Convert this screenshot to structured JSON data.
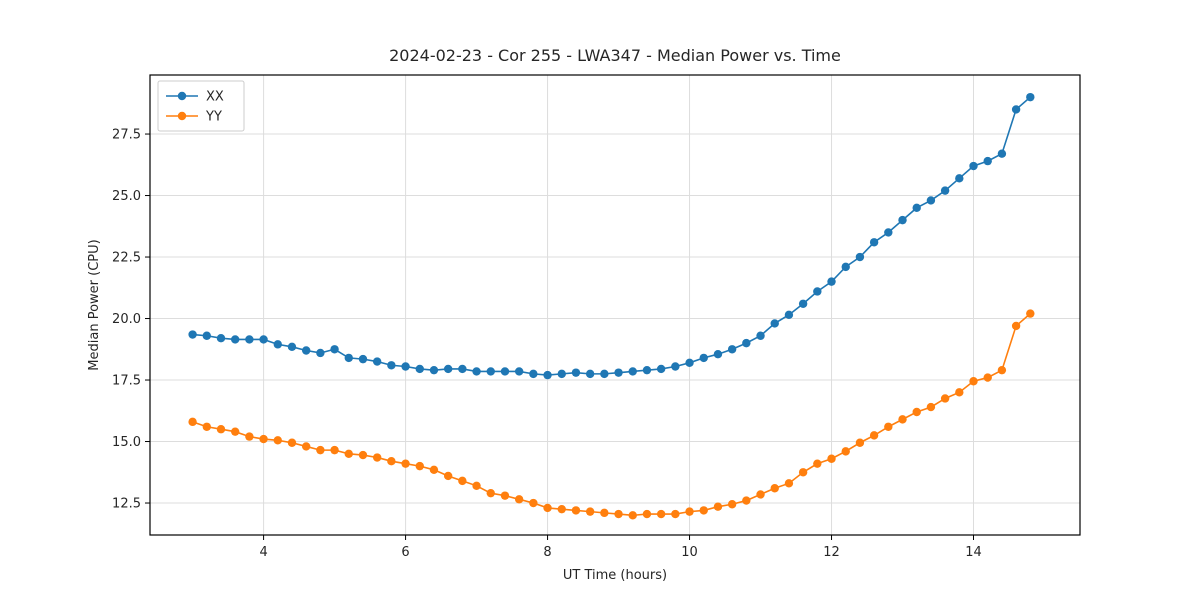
{
  "chart_data": {
    "type": "line",
    "title": "2024-02-23 - Cor 255 - LWA347 - Median Power vs. Time",
    "xlabel": "UT Time (hours)",
    "ylabel": "Median Power (CPU)",
    "xlim": [
      2.4,
      15.5
    ],
    "ylim": [
      11.2,
      29.9
    ],
    "xticks": [
      4,
      6,
      8,
      10,
      12,
      14
    ],
    "yticks": [
      12.5,
      15.0,
      17.5,
      20.0,
      22.5,
      25.0,
      27.5
    ],
    "grid": true,
    "legend_position": "upper-left",
    "marker": "circle",
    "x": [
      3.0,
      3.2,
      3.4,
      3.6,
      3.8,
      4.0,
      4.2,
      4.4,
      4.6,
      4.8,
      5.0,
      5.2,
      5.4,
      5.6,
      5.8,
      6.0,
      6.2,
      6.4,
      6.6,
      6.8,
      7.0,
      7.2,
      7.4,
      7.6,
      7.8,
      8.0,
      8.2,
      8.4,
      8.6,
      8.8,
      9.0,
      9.2,
      9.4,
      9.6,
      9.8,
      10.0,
      10.2,
      10.4,
      10.6,
      10.8,
      11.0,
      11.2,
      11.4,
      11.6,
      11.8,
      12.0,
      12.2,
      12.4,
      12.6,
      12.8,
      13.0,
      13.2,
      13.4,
      13.6,
      13.8,
      14.0,
      14.2,
      14.4,
      14.6,
      14.8
    ],
    "series": [
      {
        "name": "XX",
        "color": "#1f77b4",
        "values": [
          19.35,
          19.3,
          19.2,
          19.15,
          19.15,
          19.15,
          18.95,
          18.85,
          18.7,
          18.6,
          18.75,
          18.4,
          18.35,
          18.25,
          18.1,
          18.05,
          17.95,
          17.9,
          17.95,
          17.95,
          17.85,
          17.85,
          17.85,
          17.85,
          17.75,
          17.7,
          17.75,
          17.8,
          17.75,
          17.75,
          17.8,
          17.85,
          17.9,
          17.95,
          18.05,
          18.2,
          18.4,
          18.55,
          18.75,
          19.0,
          19.3,
          19.8,
          20.15,
          20.6,
          21.1,
          21.5,
          22.1,
          22.5,
          23.1,
          23.5,
          24.0,
          24.5,
          24.8,
          25.2,
          25.7,
          26.2,
          26.4,
          26.7,
          28.5,
          29.0
        ]
      },
      {
        "name": "YY",
        "color": "#ff7f0e",
        "values": [
          15.8,
          15.6,
          15.5,
          15.4,
          15.2,
          15.1,
          15.05,
          14.95,
          14.8,
          14.65,
          14.65,
          14.5,
          14.45,
          14.35,
          14.2,
          14.1,
          14.0,
          13.85,
          13.6,
          13.4,
          13.2,
          12.9,
          12.8,
          12.65,
          12.5,
          12.3,
          12.25,
          12.2,
          12.15,
          12.1,
          12.05,
          12.0,
          12.05,
          12.05,
          12.05,
          12.15,
          12.2,
          12.35,
          12.45,
          12.6,
          12.85,
          13.1,
          13.3,
          13.75,
          14.1,
          14.3,
          14.6,
          14.95,
          15.25,
          15.6,
          15.9,
          16.2,
          16.4,
          16.75,
          17.0,
          17.45,
          17.6,
          17.9,
          19.7,
          20.2
        ]
      }
    ]
  },
  "colors": {
    "grid": "#dddddd",
    "frame": "#000000",
    "background": "#ffffff",
    "legend_border": "#cccccc"
  }
}
